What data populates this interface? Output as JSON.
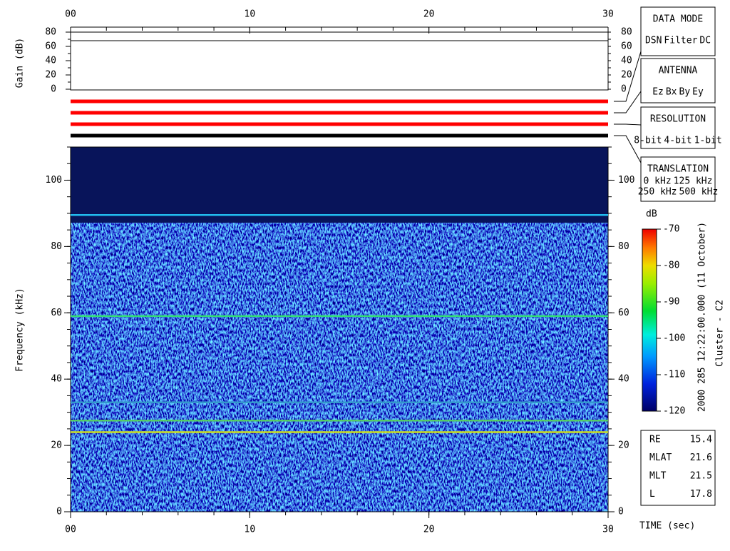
{
  "chart_data": {
    "type": "spectrogram",
    "xlabel": "TIME (sec)",
    "ylabel": "Frequency (kHz)",
    "xlim": [
      0,
      30
    ],
    "xticks": [
      {
        "value": 0,
        "label": "00"
      },
      10,
      20,
      30
    ],
    "xminorticks": [
      0,
      2,
      4,
      6,
      8,
      10,
      12,
      14,
      16,
      18,
      20,
      22,
      24,
      26,
      28,
      30
    ],
    "ylim": [
      0,
      110
    ],
    "yticks": [
      0,
      20,
      40,
      60,
      80,
      100
    ],
    "yminorticks": [
      0,
      5,
      10,
      15,
      20,
      25,
      30,
      35,
      40,
      45,
      50,
      55,
      60,
      65,
      70,
      75,
      80,
      85,
      90,
      95,
      100,
      105,
      110
    ],
    "lines": [
      {
        "freq": 89.5,
        "color": "#22bbee"
      },
      {
        "freq": 59,
        "color": "#33dd77"
      },
      {
        "freq": 33,
        "color": "#3399cc"
      },
      {
        "freq": 27.5,
        "color": "#55cc66"
      },
      {
        "freq": 24,
        "color": "#ccdd22"
      }
    ],
    "gain": {
      "ylabel": "Gain (dB)",
      "ylim": [
        0,
        80
      ],
      "yticks": [
        0,
        20,
        40,
        60,
        80
      ],
      "yminorticks": [
        0,
        10,
        20,
        30,
        40,
        50,
        60,
        70,
        80
      ],
      "values": [
        68
      ]
    },
    "indicator_colors": [
      "#ff0000",
      "#ff0000",
      "#ff0000",
      "#000000"
    ],
    "colorbar": {
      "label": "dB",
      "lim": [
        -120,
        -70
      ],
      "ticks": [
        -120,
        -110,
        -100,
        -90,
        -80,
        -70
      ]
    },
    "side_text": [
      "2000 285 12:22:00.000 (11 October)",
      "Cluster - C2"
    ],
    "legends": [
      {
        "title": "DATA MODE",
        "items": [
          {
            "name": "DSN",
            "color": "#ff0000"
          },
          {
            "name": "Filter",
            "color": "#00dd00"
          },
          {
            "name": "DC",
            "color": "#0000ff"
          }
        ]
      },
      {
        "title": "ANTENNA",
        "items": [
          {
            "name": "Ez",
            "color": "#ff0000"
          },
          {
            "name": "Bx",
            "color": "#00cc00"
          },
          {
            "name": "By",
            "color": "#0000ff"
          },
          {
            "name": "Ey",
            "color": "#000000"
          }
        ]
      },
      {
        "title": "RESOLUTION",
        "items": [
          {
            "name": "8-bit",
            "color": "#ff0000"
          },
          {
            "name": "4-bit",
            "color": "#00cc00"
          },
          {
            "name": "1-bit",
            "color": "#0000ff"
          }
        ]
      },
      {
        "title": "TRANSLATION",
        "items": [
          {
            "name": "0 kHz",
            "color": "#ff0000"
          },
          {
            "name": "125 kHz",
            "color": "#00cc00"
          },
          {
            "name": "250 kHz",
            "color": "#0000ff"
          },
          {
            "name": "500 kHz",
            "color": "#000000"
          }
        ]
      }
    ],
    "info": [
      {
        "label": "RE",
        "value": 15.4
      },
      {
        "label": "MLAT",
        "value": 21.6
      },
      {
        "label": "MLT",
        "value": 21.5
      },
      {
        "label": "L",
        "value": 17.8
      }
    ]
  }
}
